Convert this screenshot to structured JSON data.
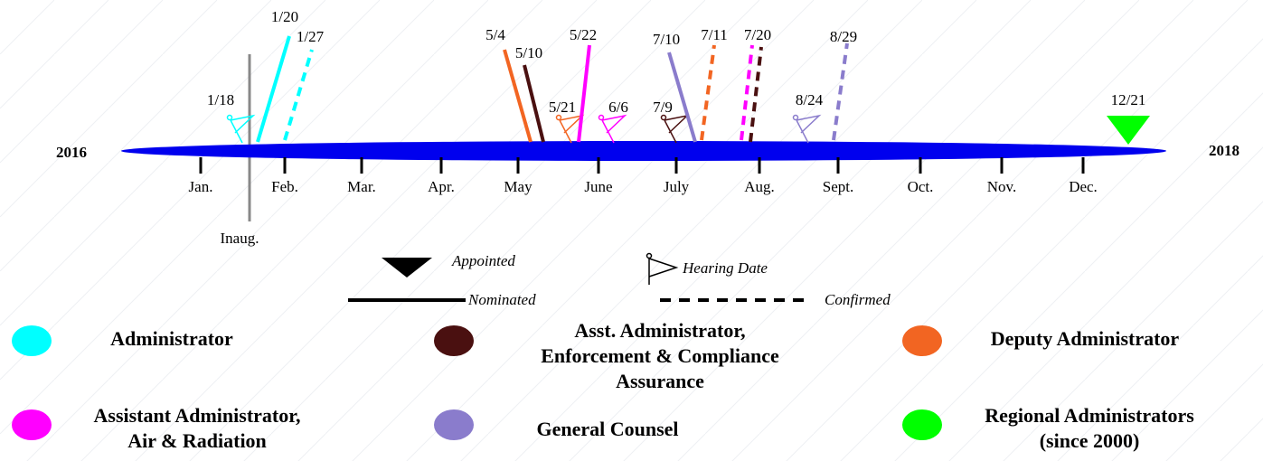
{
  "timeline": {
    "start_label": "2016",
    "end_label": "2018",
    "months": [
      "Jan.",
      "Feb.",
      "Mar.",
      "Apr.",
      "May",
      "June",
      "July",
      "Aug.",
      "Sept.",
      "Oct.",
      "Nov.",
      "Dec."
    ],
    "inauguration": "Inaug.",
    "roles": [
      {
        "name": [
          "Administrator"
        ],
        "color": "#00ffff"
      },
      {
        "name": [
          "Asst. Administrator,",
          "Enforcement & Compliance",
          "Assurance"
        ],
        "color": "#4a1010"
      },
      {
        "name": [
          "Deputy Administrator"
        ],
        "color": "#f26522"
      },
      {
        "name": [
          "Assistant Administrator,",
          "Air & Radiation"
        ],
        "color": "#ff00ff"
      },
      {
        "name": [
          "General Counsel"
        ],
        "color": "#8a7ccc"
      },
      {
        "name": [
          "Regional Administrators",
          "(since 2000)"
        ],
        "color": "#00ff00"
      }
    ],
    "events": [
      {
        "label": "1/18",
        "marks": [
          {
            "role": 0,
            "kind": "hearing"
          }
        ]
      },
      {
        "label": "1/20",
        "marks": [
          {
            "role": 0,
            "kind": "nominated"
          }
        ]
      },
      {
        "label": "1/27",
        "marks": [
          {
            "role": 0,
            "kind": "confirmed"
          }
        ]
      },
      {
        "label": "5/4",
        "marks": [
          {
            "role": 2,
            "kind": "nominated"
          }
        ]
      },
      {
        "label": "5/10",
        "marks": [
          {
            "role": 1,
            "kind": "nominated"
          }
        ]
      },
      {
        "label": "5/21",
        "marks": [
          {
            "role": 2,
            "kind": "hearing"
          }
        ]
      },
      {
        "label": "5/22",
        "marks": [
          {
            "role": 3,
            "kind": "nominated"
          }
        ]
      },
      {
        "label": "6/6",
        "marks": [
          {
            "role": 3,
            "kind": "hearing"
          }
        ]
      },
      {
        "label": "7/9",
        "marks": [
          {
            "role": 1,
            "kind": "hearing"
          }
        ]
      },
      {
        "label": "7/10",
        "marks": [
          {
            "role": 4,
            "kind": "nominated"
          }
        ]
      },
      {
        "label": "7/11",
        "marks": [
          {
            "role": 2,
            "kind": "confirmed"
          }
        ]
      },
      {
        "label": "7/20",
        "marks": [
          {
            "role": 3,
            "kind": "confirmed"
          },
          {
            "role": 1,
            "kind": "confirmed"
          }
        ]
      },
      {
        "label": "8/24",
        "marks": [
          {
            "role": 4,
            "kind": "hearing"
          }
        ]
      },
      {
        "label": "8/29",
        "marks": [
          {
            "role": 4,
            "kind": "confirmed"
          }
        ]
      },
      {
        "label": "12/21",
        "marks": [
          {
            "role": 5,
            "kind": "appointed"
          }
        ]
      }
    ]
  },
  "legend": {
    "appointed": "Appointed",
    "hearing": "Hearing Date",
    "nominated": "Nominated",
    "confirmed": "Confirmed"
  }
}
